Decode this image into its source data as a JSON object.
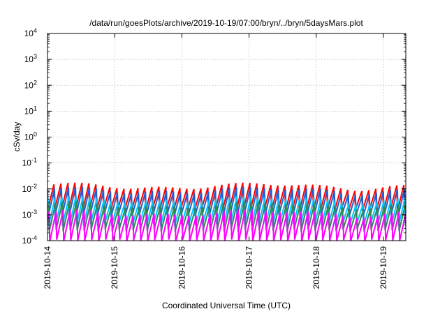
{
  "chart_data": {
    "type": "line",
    "title": "/data/run/goesPlots/archive/2019-10-19/07:00/bryn/../bryn/5daysMars.plot",
    "xlabel": "Coordinated Universal Time (UTC)",
    "ylabel": "cSv/day",
    "yscale": "log",
    "ylim": [
      0.0001,
      10000
    ],
    "xlim": [
      "2019-10-14",
      "2019-10-19T08:00"
    ],
    "yticks": [
      {
        "base": "10",
        "exp": "-4"
      },
      {
        "base": "10",
        "exp": "-3"
      },
      {
        "base": "10",
        "exp": "-2"
      },
      {
        "base": "10",
        "exp": "-1"
      },
      {
        "base": "10",
        "exp": "0"
      },
      {
        "base": "10",
        "exp": "1"
      },
      {
        "base": "10",
        "exp": "2"
      },
      {
        "base": "10",
        "exp": "3"
      },
      {
        "base": "10",
        "exp": "4"
      }
    ],
    "xticks": [
      "2019-10-14",
      "2019-10-15",
      "2019-10-16",
      "2019-10-17",
      "2019-10-18",
      "2019-10-19"
    ],
    "grid": true,
    "legend": "none",
    "series_style": "sawtooth with a period of about 2.5 hours; each series rises linearly then drops sharply",
    "series": [
      {
        "color": "#ff0000",
        "min": 0.0015,
        "max": 0.013
      },
      {
        "color": "#1f5fd6",
        "min": 0.0009,
        "max": 0.009
      },
      {
        "color": "#00c8ff",
        "min": 0.0004,
        "max": 0.004
      },
      {
        "color": "#2e8b57",
        "min": 0.00025,
        "max": 0.0025
      },
      {
        "color": "#ff00ff",
        "min": 0.0001,
        "max": 0.0012
      }
    ]
  }
}
